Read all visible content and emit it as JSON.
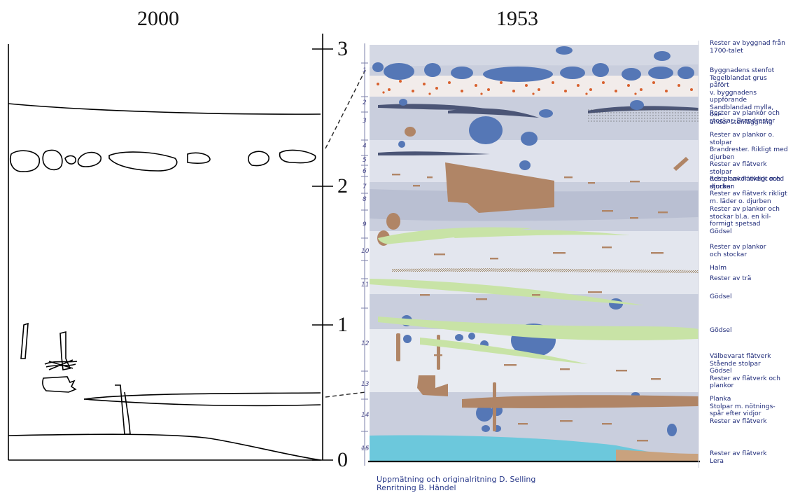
{
  "left_panel": {
    "year": "2000"
  },
  "right_panel": {
    "year": "1953"
  },
  "scale": {
    "ticks": [
      "3",
      "2",
      "1",
      "0"
    ]
  },
  "layer_numbers": [
    "1",
    "2",
    "3",
    "4",
    "5",
    "6",
    "7",
    "8",
    "9",
    "10",
    "11",
    "12",
    "13",
    "14",
    "15"
  ],
  "legend": [
    "Rester av byggnad från",
    "1700-talet",
    "Byggnadens stenfot",
    "Tegelblandat grus påfört",
    "v. byggnadens uppförande",
    "Sandblandad mylla, där-",
    "under stenläggning",
    "Rester av plankor och",
    "stockar. Brandrester",
    "Rester av plankor o. stolpar",
    "Brandrester. Rikligt med",
    "djurben",
    "Rester av flätverk stolpar",
    "och plankor rikligt med",
    "djurben",
    "Rester av flätverk och",
    "stockar",
    "Rester av flätverk rikligt",
    "m. läder o. djurben",
    "Rester av plankor och",
    "stockar bl.a. en kil-",
    "formigt spetsad",
    "Gödsel",
    "Rester av plankor",
    "och stockar",
    "Halm",
    "Rester av trä",
    "Gödsel",
    "Gödsel",
    "Välbevarat flätverk",
    "Stående stolpar",
    "Gödsel",
    "Rester av flätverk och",
    "plankor",
    "Planka",
    "Stolpar m. nötnings-",
    "spår efter vidjor",
    "Rester av flätverk",
    "Rester av flätverk",
    "Lera"
  ],
  "credits": [
    "Uppmätning och originalritning   D. Selling",
    "Renritning  B. Händel"
  ],
  "colors": {
    "stone": "#5577b6",
    "wood": "#b08566",
    "manure": "#c8e3a6",
    "clay": "#6cc8dc",
    "brick": "#d8612e",
    "soil": "#c9cedd",
    "ink": "#1e2a78"
  }
}
